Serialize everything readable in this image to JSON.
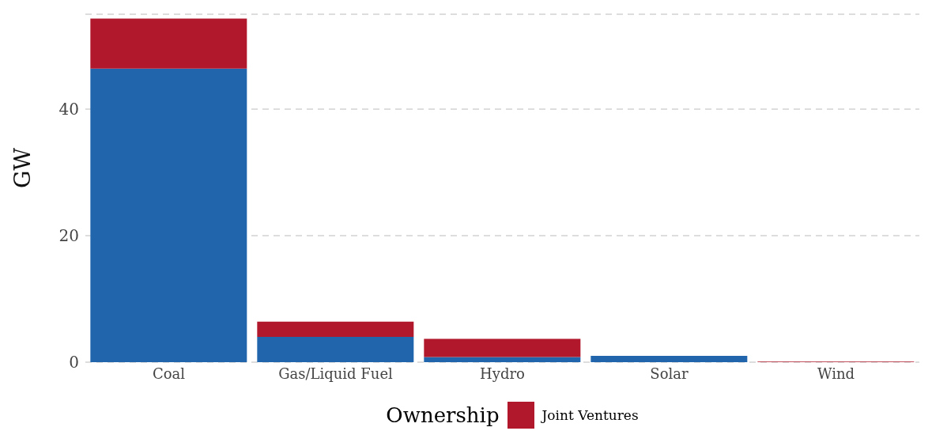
{
  "chart_data": {
    "type": "bar",
    "stacked": true,
    "ylabel": "GW",
    "legend_title": "Ownership",
    "legend": "bottom",
    "grid": "y",
    "categories": [
      "Coal",
      "Gas/Liquid Fuel",
      "Hydro",
      "Solar",
      "Wind"
    ],
    "series": [
      {
        "color": "#2166ac",
        "values": [
          46.4,
          4.0,
          0.8,
          1.0,
          null
        ]
      },
      {
        "name": "Joint Ventures",
        "color": "#b2182b",
        "values": [
          7.9,
          2.4,
          2.9,
          null,
          0.1
        ]
      }
    ],
    "ylim": [
      0,
      55
    ],
    "yticks": [
      0,
      20,
      40
    ]
  }
}
